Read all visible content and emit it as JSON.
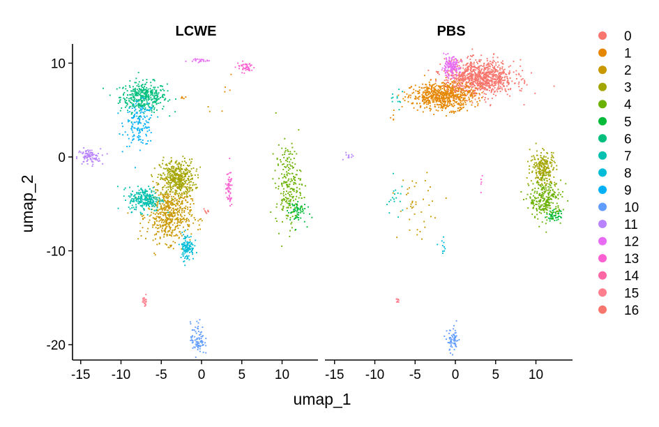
{
  "chart_data": {
    "type": "scatter",
    "xlabel": "umap_1",
    "ylabel": "umap_2",
    "xlim": [
      -16,
      14
    ],
    "ylim": [
      -22,
      12
    ],
    "x_ticks": [
      -15,
      -10,
      -5,
      0,
      5,
      10
    ],
    "y_ticks": [
      10,
      0,
      -10,
      -20
    ],
    "x_tick_labels": [
      "-15",
      "-10",
      "-5",
      "0",
      "5",
      "10"
    ],
    "y_tick_labels": [
      "10",
      "0",
      "-10",
      "-20"
    ],
    "grid": false,
    "legend_position": "right",
    "clusters": [
      "0",
      "1",
      "2",
      "3",
      "4",
      "5",
      "6",
      "7",
      "8",
      "9",
      "10",
      "11",
      "12",
      "13",
      "14",
      "15",
      "16"
    ],
    "colors": [
      "#F8766D",
      "#E58700",
      "#C99800",
      "#A3A500",
      "#6BB100",
      "#00BA38",
      "#00BF7D",
      "#00C0AF",
      "#00BCD8",
      "#00B0F6",
      "#619CFF",
      "#B983FF",
      "#E76BF3",
      "#FD61D1",
      "#FF67A4",
      "#FF7F8E",
      "#F8766D"
    ],
    "panels": [
      {
        "title": "LCWE",
        "blobs": [
          {
            "cluster": "6",
            "cx": -7.2,
            "cy": 6.4,
            "rx": 2.0,
            "ry": 1.1,
            "n": 380
          },
          {
            "cluster": "9",
            "cx": -7.7,
            "cy": 3.5,
            "rx": 1.3,
            "ry": 1.6,
            "n": 150
          },
          {
            "cluster": "11",
            "cx": -14.0,
            "cy": 0.0,
            "rx": 1.0,
            "ry": 0.6,
            "n": 90
          },
          {
            "cluster": "3",
            "cx": -3.0,
            "cy": -2.3,
            "rx": 1.5,
            "ry": 1.4,
            "n": 430
          },
          {
            "cluster": "2",
            "cx": -4.0,
            "cy": -6.2,
            "rx": 1.9,
            "ry": 2.0,
            "n": 520
          },
          {
            "cluster": "7",
            "cx": -7.0,
            "cy": -4.5,
            "rx": 1.4,
            "ry": 0.9,
            "n": 240
          },
          {
            "cluster": "8",
            "cx": -1.8,
            "cy": -9.6,
            "rx": 0.6,
            "ry": 1.0,
            "n": 110
          },
          {
            "cluster": "4",
            "cx": 10.8,
            "cy": -3.0,
            "rx": 1.1,
            "ry": 3.0,
            "n": 220
          },
          {
            "cluster": "5",
            "cx": 11.8,
            "cy": -5.8,
            "rx": 0.8,
            "ry": 0.9,
            "n": 60
          },
          {
            "cluster": "12",
            "cx": -0.5,
            "cy": 10.3,
            "rx": 1.0,
            "ry": 0.15,
            "n": 22
          },
          {
            "cluster": "13",
            "cx": 5.5,
            "cy": 9.6,
            "rx": 0.8,
            "ry": 0.4,
            "n": 45
          },
          {
            "cluster": "13",
            "cx": 3.4,
            "cy": -3.5,
            "rx": 0.3,
            "ry": 1.3,
            "n": 55
          },
          {
            "cluster": "10",
            "cx": -0.5,
            "cy": -19.4,
            "rx": 0.6,
            "ry": 1.2,
            "n": 85
          },
          {
            "cluster": "15",
            "cx": -7.0,
            "cy": -15.3,
            "rx": 0.2,
            "ry": 0.4,
            "n": 20
          },
          {
            "cluster": "16",
            "cx": 0.6,
            "cy": -5.8,
            "rx": 0.3,
            "ry": 0.25,
            "n": 8
          },
          {
            "cluster": "1",
            "cx": -2.3,
            "cy": 6.3,
            "rx": 0.3,
            "ry": 0.3,
            "n": 5
          },
          {
            "cluster": "1",
            "cx": 3.2,
            "cy": 7.0,
            "rx": 0.6,
            "ry": 1.5,
            "n": 5
          },
          {
            "cluster": "2",
            "cx": 1.0,
            "cy": 5.3,
            "rx": 0.2,
            "ry": 0.2,
            "n": 2
          }
        ]
      },
      {
        "title": "PBS",
        "blobs": [
          {
            "cluster": "0",
            "cx": 3.0,
            "cy": 8.4,
            "rx": 3.0,
            "ry": 1.3,
            "n": 950
          },
          {
            "cluster": "1",
            "cx": -1.5,
            "cy": 6.5,
            "rx": 2.6,
            "ry": 1.0,
            "n": 650
          },
          {
            "cluster": "12",
            "cx": -0.6,
            "cy": 9.6,
            "rx": 0.8,
            "ry": 0.7,
            "n": 140
          },
          {
            "cluster": "3",
            "cx": 10.9,
            "cy": -1.2,
            "rx": 1.1,
            "ry": 1.3,
            "n": 230
          },
          {
            "cluster": "4",
            "cx": 11.2,
            "cy": -4.6,
            "rx": 1.4,
            "ry": 1.4,
            "n": 260
          },
          {
            "cluster": "5",
            "cx": 12.3,
            "cy": -6.3,
            "rx": 0.7,
            "ry": 0.4,
            "n": 45
          },
          {
            "cluster": "2",
            "cx": -5.0,
            "cy": -5.0,
            "rx": 1.5,
            "ry": 2.5,
            "n": 40
          },
          {
            "cluster": "7",
            "cx": -7.5,
            "cy": -4.8,
            "rx": 1.0,
            "ry": 1.5,
            "n": 18
          },
          {
            "cluster": "7",
            "cx": -7.2,
            "cy": 6.2,
            "rx": 0.8,
            "ry": 0.8,
            "n": 12
          },
          {
            "cluster": "8",
            "cx": -1.5,
            "cy": -9.5,
            "rx": 0.4,
            "ry": 0.6,
            "n": 10
          },
          {
            "cluster": "10",
            "cx": -0.3,
            "cy": -19.6,
            "rx": 0.5,
            "ry": 0.9,
            "n": 65
          },
          {
            "cluster": "11",
            "cx": -13.2,
            "cy": 0.1,
            "rx": 0.5,
            "ry": 0.3,
            "n": 10
          },
          {
            "cluster": "15",
            "cx": -7.2,
            "cy": -15.3,
            "rx": 0.2,
            "ry": 0.3,
            "n": 10
          },
          {
            "cluster": "13",
            "cx": 3.2,
            "cy": -3.0,
            "rx": 0.1,
            "ry": 1.0,
            "n": 5
          },
          {
            "cluster": "1",
            "cx": -5.5,
            "cy": 6.0,
            "rx": 1.2,
            "ry": 0.8,
            "n": 12
          },
          {
            "cluster": "1",
            "cx": -7.8,
            "cy": 4.0,
            "rx": 0.3,
            "ry": 0.8,
            "n": 5
          }
        ]
      }
    ]
  }
}
